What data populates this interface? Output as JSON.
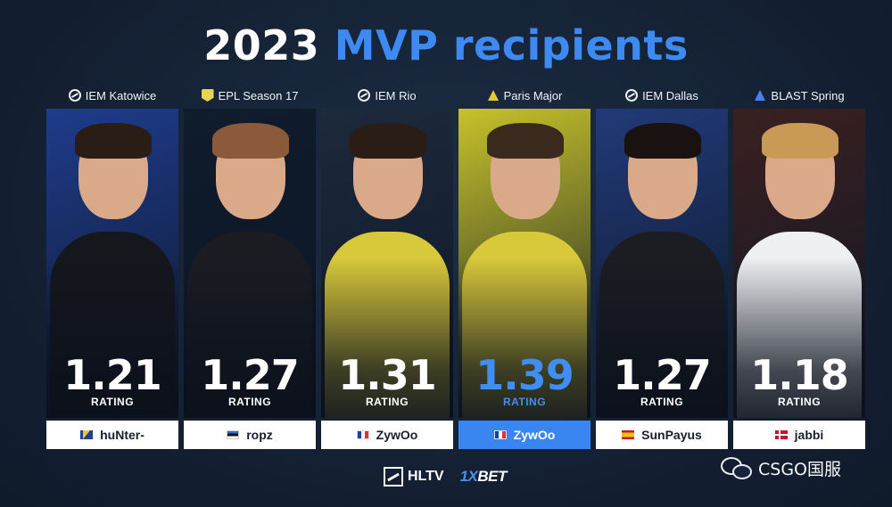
{
  "title": {
    "year": "2023",
    "text": "MVP recipients"
  },
  "cards": [
    {
      "event": "IEM Katowice",
      "event_icon": "iem-icon",
      "rating": "1.21",
      "rating_label": "RATING",
      "player": "huNter-",
      "flag": "bosnia-flag",
      "highlight": false,
      "bg": "#1e3c8c",
      "jersey": "#15171d",
      "hair": "#2a1d15"
    },
    {
      "event": "EPL Season 17",
      "event_icon": "epl-icon",
      "rating": "1.27",
      "rating_label": "RATING",
      "player": "ropz",
      "flag": "estonia-flag",
      "highlight": false,
      "bg": "#0f1c2c",
      "jersey": "#1a1c22",
      "hair": "#8a5a3a"
    },
    {
      "event": "IEM Rio",
      "event_icon": "iem-icon",
      "rating": "1.31",
      "rating_label": "RATING",
      "player": "ZywOo",
      "flag": "france-flag",
      "highlight": false,
      "bg": "#1d2a3c",
      "jersey": "#d8c93a",
      "hair": "#2a1d15"
    },
    {
      "event": "Paris Major",
      "event_icon": "major-icon",
      "rating": "1.39",
      "rating_label": "RATING",
      "player": "ZywOo",
      "flag": "france-flag",
      "highlight": true,
      "bg": "#c7c22b",
      "jersey": "#d8c93a",
      "hair": "#3a2a1d"
    },
    {
      "event": "IEM Dallas",
      "event_icon": "iem-icon",
      "rating": "1.27",
      "rating_label": "RATING",
      "player": "SunPayus",
      "flag": "spain-flag",
      "highlight": false,
      "bg": "#213a78",
      "jersey": "#1c1d23",
      "hair": "#1a1210"
    },
    {
      "event": "BLAST Spring",
      "event_icon": "blast-icon",
      "rating": "1.18",
      "rating_label": "RATING",
      "player": "jabbi",
      "flag": "denmark-flag",
      "highlight": false,
      "bg": "#3a2020",
      "jersey": "#eef0f2",
      "hair": "#c99a55"
    }
  ],
  "footer": {
    "hltv": "HLTV",
    "xbet_prefix": "1X",
    "xbet_suffix": "BET"
  },
  "watermark": {
    "text": "CSGO国服",
    "icon": "wechat-icon"
  }
}
